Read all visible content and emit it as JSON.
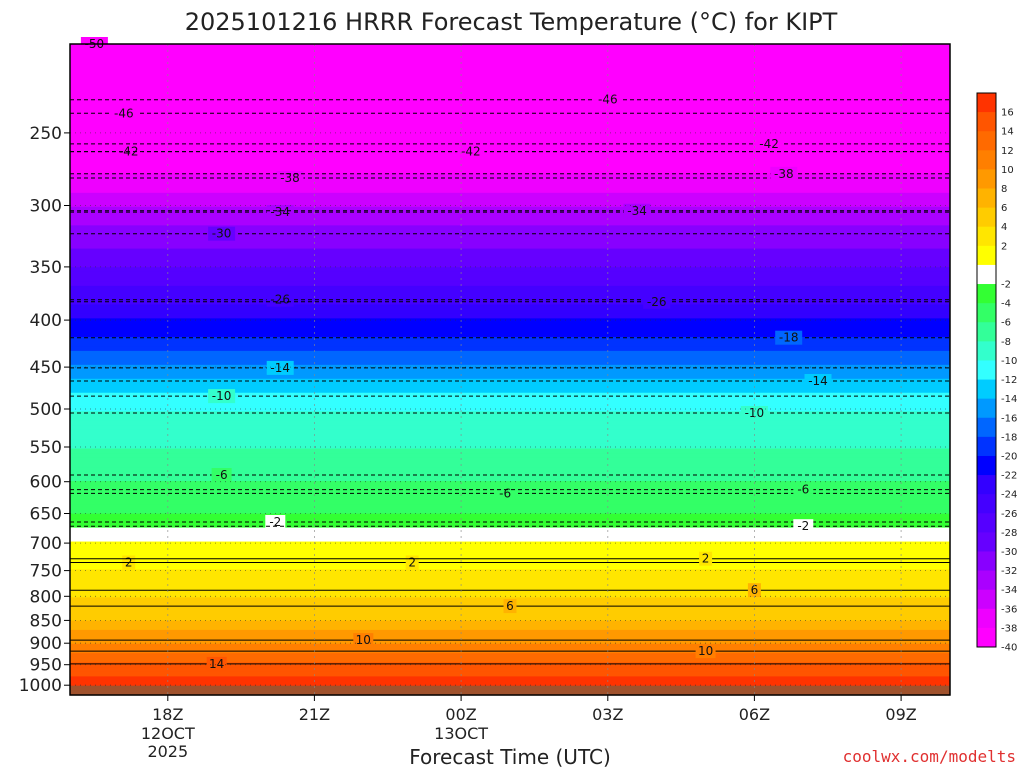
{
  "chart_data": {
    "type": "heatmap",
    "title": "2025101216 HRRR Forecast Temperature (°C) for KIPT",
    "xlabel": "Forecast Time (UTC)",
    "ylabel": "",
    "credit": "coolwx.com/modelts",
    "x_ticks": [
      {
        "label": "18Z",
        "sub1": "12OCT",
        "sub2": "2025",
        "hour": 18
      },
      {
        "label": "21Z",
        "sub1": "",
        "sub2": "",
        "hour": 21
      },
      {
        "label": "00Z",
        "sub1": "13OCT",
        "sub2": "",
        "hour": 24
      },
      {
        "label": "03Z",
        "sub1": "",
        "sub2": "",
        "hour": 27
      },
      {
        "label": "06Z",
        "sub1": "",
        "sub2": "",
        "hour": 30
      },
      {
        "label": "09Z",
        "sub1": "",
        "sub2": "",
        "hour": 33
      }
    ],
    "xlim": [
      16,
      34
    ],
    "y_ticks": [
      250,
      300,
      350,
      400,
      450,
      500,
      550,
      600,
      650,
      700,
      750,
      800,
      850,
      900,
      950,
      1000
    ],
    "ylim": [
      1025,
      200
    ],
    "y_scale": "log",
    "grid": true,
    "colorbar": {
      "labels": [
        "16",
        "14",
        "12",
        "10",
        "8",
        "6",
        "4",
        "2",
        "-2",
        "-4",
        "-6",
        "-8",
        "-10",
        "-12",
        "-14",
        "-16",
        "-18",
        "-20",
        "-22",
        "-24",
        "-26",
        "-28",
        "-30",
        "-32",
        "-34",
        "-36",
        "-38",
        "-40"
      ],
      "colors": [
        "#ff3300",
        "#ff5500",
        "#ff6a00",
        "#ff7f00",
        "#ff9900",
        "#ffb300",
        "#ffcc00",
        "#ffe600",
        "#ffff00",
        "#ffffff",
        "#33ff33",
        "#33ff66",
        "#33ff99",
        "#33ffcc",
        "#33ffff",
        "#00ccff",
        "#0099ff",
        "#0066ff",
        "#0033ff",
        "#0000ff",
        "#3300ff",
        "#4400ff",
        "#5500ff",
        "#6600ff",
        "#8800ff",
        "#aa00ff",
        "#cc00ff",
        "#ee00ff",
        "#ff00ff"
      ]
    },
    "profile": [
      {
        "p": 1000,
        "t": 18
      },
      {
        "p": 975,
        "t": 16
      },
      {
        "p": 950,
        "t": 14
      },
      {
        "p": 900,
        "t": 10
      },
      {
        "p": 850,
        "t": 6
      },
      {
        "p": 800,
        "t": 4
      },
      {
        "p": 750,
        "t": 2
      },
      {
        "p": 700,
        "t": 0
      },
      {
        "p": 650,
        "t": -4
      },
      {
        "p": 600,
        "t": -6
      },
      {
        "p": 550,
        "t": -8
      },
      {
        "p": 500,
        "t": -10
      },
      {
        "p": 450,
        "t": -16
      },
      {
        "p": 400,
        "t": -22
      },
      {
        "p": 350,
        "t": -28
      },
      {
        "p": 300,
        "t": -34
      },
      {
        "p": 250,
        "t": -44
      },
      {
        "p": 200,
        "t": -52
      }
    ],
    "contours": [
      {
        "value": "-50",
        "p": 200,
        "label_hour": 16.5
      },
      {
        "value": "-46",
        "p": 238,
        "label_hour": 17.1
      },
      {
        "value": "-46",
        "p": 230,
        "label_hour": 27.0
      },
      {
        "value": "-42",
        "p": 262,
        "label_hour": 17.2
      },
      {
        "value": "-42",
        "p": 262,
        "label_hour": 24.2
      },
      {
        "value": "-42",
        "p": 257,
        "label_hour": 30.3
      },
      {
        "value": "-38",
        "p": 280,
        "label_hour": 20.5
      },
      {
        "value": "-38",
        "p": 277,
        "label_hour": 30.6
      },
      {
        "value": "-34",
        "p": 305,
        "label_hour": 20.3
      },
      {
        "value": "-34",
        "p": 304,
        "label_hour": 27.6
      },
      {
        "value": "-30",
        "p": 322,
        "label_hour": 19.1
      },
      {
        "value": "-26",
        "p": 380,
        "label_hour": 20.3
      },
      {
        "value": "-26",
        "p": 382,
        "label_hour": 28.0
      },
      {
        "value": "-18",
        "p": 418,
        "label_hour": 30.7
      },
      {
        "value": "-14",
        "p": 451,
        "label_hour": 20.3
      },
      {
        "value": "-14",
        "p": 466,
        "label_hour": 31.3
      },
      {
        "value": "-10",
        "p": 484,
        "label_hour": 19.1
      },
      {
        "value": "-10",
        "p": 505,
        "label_hour": 30.0
      },
      {
        "value": "-6",
        "p": 590,
        "label_hour": 19.1
      },
      {
        "value": "-6",
        "p": 618,
        "label_hour": 24.9
      },
      {
        "value": "-6",
        "p": 612,
        "label_hour": 31.0
      },
      {
        "value": "-2",
        "p": 664,
        "label_hour": 20.2
      },
      {
        "value": "-2",
        "p": 671,
        "label_hour": 31.0
      },
      {
        "value": "2",
        "p": 735,
        "label_hour": 17.2
      },
      {
        "value": "2",
        "p": 735,
        "label_hour": 23.0
      },
      {
        "value": "2",
        "p": 728,
        "label_hour": 29.0
      },
      {
        "value": "6",
        "p": 820,
        "label_hour": 25.0
      },
      {
        "value": "6",
        "p": 788,
        "label_hour": 30.0
      },
      {
        "value": "10",
        "p": 893,
        "label_hour": 22.0
      },
      {
        "value": "10",
        "p": 918,
        "label_hour": 29.0
      },
      {
        "value": "14",
        "p": 948,
        "label_hour": 19.0
      }
    ]
  }
}
